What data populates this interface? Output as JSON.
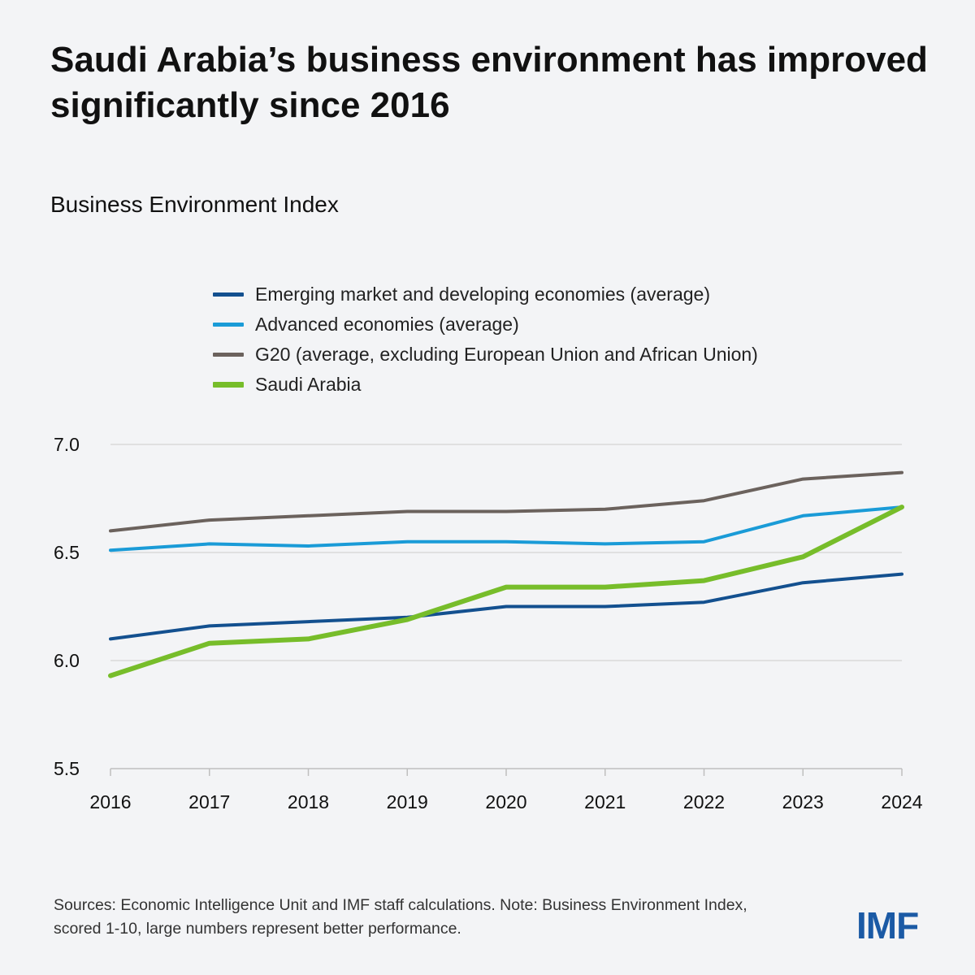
{
  "colors": {
    "emde": "#13508f",
    "advanced": "#1a9bd7",
    "g20": "#6b625d",
    "saudi": "#77bd2a",
    "grid": "#d9d9d9",
    "axis": "#bfbfbf",
    "logo": "#1b5aa5"
  },
  "chart_data": {
    "type": "line",
    "title": "Saudi Arabia’s business environment has improved significantly since 2016",
    "subtitle": "Business Environment Index",
    "xlabel": "",
    "ylabel": "",
    "x": [
      "2016",
      "2017",
      "2018",
      "2019",
      "2020",
      "2021",
      "2022",
      "2023",
      "2024"
    ],
    "ylim": [
      5.5,
      7.0
    ],
    "yticks": [
      "5.5",
      "6.0",
      "6.5",
      "7.0"
    ],
    "grid": true,
    "legend_position": "top",
    "series": [
      {
        "name": "Emerging market and developing economies (average)",
        "color_key": "emde",
        "values": [
          6.1,
          6.16,
          6.18,
          6.2,
          6.25,
          6.25,
          6.27,
          6.36,
          6.4
        ]
      },
      {
        "name": "Advanced economies (average)",
        "color_key": "advanced",
        "values": [
          6.51,
          6.54,
          6.53,
          6.55,
          6.55,
          6.54,
          6.55,
          6.67,
          6.71
        ]
      },
      {
        "name": "G20 (average, excluding European Union and African Union)",
        "color_key": "g20",
        "values": [
          6.6,
          6.65,
          6.67,
          6.69,
          6.69,
          6.7,
          6.74,
          6.84,
          6.87
        ]
      },
      {
        "name": "Saudi Arabia",
        "color_key": "saudi",
        "values": [
          5.93,
          6.08,
          6.1,
          6.19,
          6.34,
          6.34,
          6.37,
          6.48,
          6.71
        ]
      }
    ]
  },
  "footnote": "Sources: Economic Intelligence Unit and IMF staff calculations. Note: Business Environment Index, scored 1-10, large numbers represent better performance.",
  "logo_text": "IMF"
}
